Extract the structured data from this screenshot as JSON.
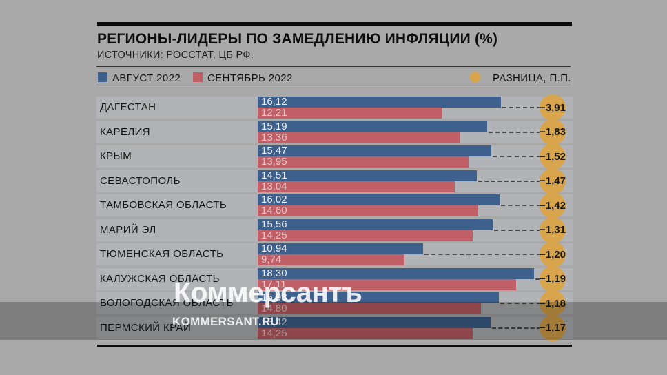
{
  "header": {
    "title": "РЕГИОНЫ-ЛИДЕРЫ ПО ЗАМЕДЛЕНИЮ ИНФЛЯЦИИ (%)",
    "source": "ИСТОЧНИКИ: РОССТАТ, ЦБ РФ."
  },
  "legend": {
    "august_label": "АВГУСТ 2022",
    "september_label": "СЕНТЯБРЬ 2022",
    "diff_label": "РАЗНИЦА, П.П."
  },
  "watermark": {
    "main": "Коммерсантъ",
    "site": "KOMMERSANT.RU"
  },
  "colors": {
    "august_bar": "#3e608d",
    "september_bar": "#c05f65",
    "diff_badge": "#d9a54c",
    "page_background": "#a9a9a9",
    "row_background": "#b2b3b6"
  },
  "chart_data": {
    "type": "bar",
    "orientation": "horizontal",
    "title": "РЕГИОНЫ-ЛИДЕРЫ ПО ЗАМЕДЛЕНИЮ ИНФЛЯЦИИ (%)",
    "source_note": "ИСТОЧНИКИ: РОССТАТ, ЦБ РФ.",
    "unit": "%",
    "xlim": [
      0,
      20
    ],
    "grid": false,
    "legend_position": "top",
    "categories": [
      "ДАГЕСТАН",
      "КАРЕЛИЯ",
      "КРЫМ",
      "СЕВАСТОПОЛЬ",
      "ТАМБОВСКАЯ ОБЛАСТЬ",
      "МАРИЙ ЭЛ",
      "ТЮМЕНСКАЯ ОБЛАСТЬ",
      "КАЛУЖСКАЯ ОБЛАСТЬ",
      "ВОЛОГОДСКАЯ ОБЛАСТЬ",
      "ПЕРМСКИЙ КРАЙ"
    ],
    "series": [
      {
        "name": "АВГУСТ 2022",
        "values": [
          16.12,
          15.19,
          15.47,
          14.51,
          16.02,
          15.56,
          10.94,
          18.3,
          15.98,
          15.42
        ]
      },
      {
        "name": "СЕНТЯБРЬ 2022",
        "values": [
          12.21,
          13.36,
          13.95,
          13.04,
          14.6,
          14.25,
          9.74,
          17.11,
          14.8,
          14.25
        ]
      }
    ],
    "diff_pp": [
      -3.91,
      -1.83,
      -1.52,
      -1.47,
      -1.42,
      -1.31,
      -1.2,
      -1.19,
      -1.18,
      -1.17
    ]
  },
  "rows": [
    {
      "region": "ДАГЕСТАН",
      "august": "16,12",
      "september": "12,21",
      "diff": "−3,91"
    },
    {
      "region": "КАРЕЛИЯ",
      "august": "15,19",
      "september": "13,36",
      "diff": "−1,83"
    },
    {
      "region": "КРЫМ",
      "august": "15,47",
      "september": "13,95",
      "diff": "−1,52"
    },
    {
      "region": "СЕВАСТОПОЛЬ",
      "august": "14,51",
      "september": "13,04",
      "diff": "−1,47"
    },
    {
      "region": "ТАМБОВСКАЯ ОБЛАСТЬ",
      "august": "16,02",
      "september": "14,60",
      "diff": "−1,42"
    },
    {
      "region": "МАРИЙ ЭЛ",
      "august": "15,56",
      "september": "14,25",
      "diff": "−1,31"
    },
    {
      "region": "ТЮМЕНСКАЯ ОБЛАСТЬ",
      "august": "10,94",
      "september": "9,74",
      "diff": "−1,20"
    },
    {
      "region": "КАЛУЖСКАЯ ОБЛАСТЬ",
      "august": "18,30",
      "september": "17,11",
      "diff": "−1,19"
    },
    {
      "region": "ВОЛОГОДСКАЯ ОБЛАСТЬ",
      "august": "15,98",
      "september": "14,80",
      "diff": "−1,18"
    },
    {
      "region": "ПЕРМСКИЙ КРАЙ",
      "august": "15,42",
      "september": "14,25",
      "diff": "−1,17"
    }
  ]
}
